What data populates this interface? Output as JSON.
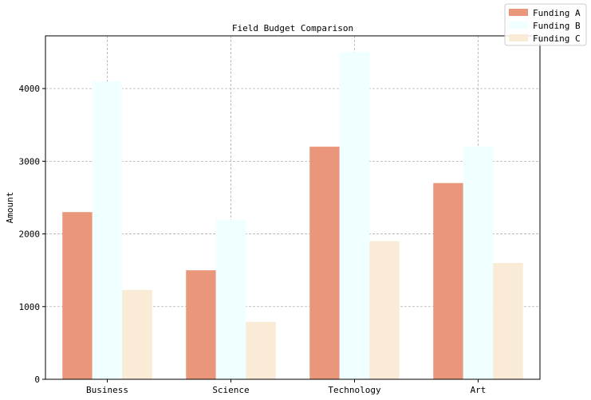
{
  "chart_data": {
    "type": "bar",
    "title": "Field Budget Comparison",
    "xlabel": "",
    "ylabel": "Amount",
    "categories": [
      "Business",
      "Science",
      "Technology",
      "Art"
    ],
    "series": [
      {
        "name": "Funding A",
        "color": "#e9967a",
        "values": [
          2300,
          1500,
          3200,
          2700
        ]
      },
      {
        "name": "Funding B",
        "color": "#f0ffff",
        "values": [
          4100,
          2200,
          4500,
          3200
        ]
      },
      {
        "name": "Funding C",
        "color": "#faebd7",
        "values": [
          1230,
          790,
          1900,
          1600
        ]
      }
    ],
    "ylim": [
      0,
      4725
    ],
    "yticks": [
      0,
      1000,
      2000,
      3000,
      4000
    ],
    "ytick_labels": [
      "0",
      "1000",
      "2000",
      "3000",
      "4000"
    ],
    "grid": true,
    "legend_position": "top-right"
  }
}
